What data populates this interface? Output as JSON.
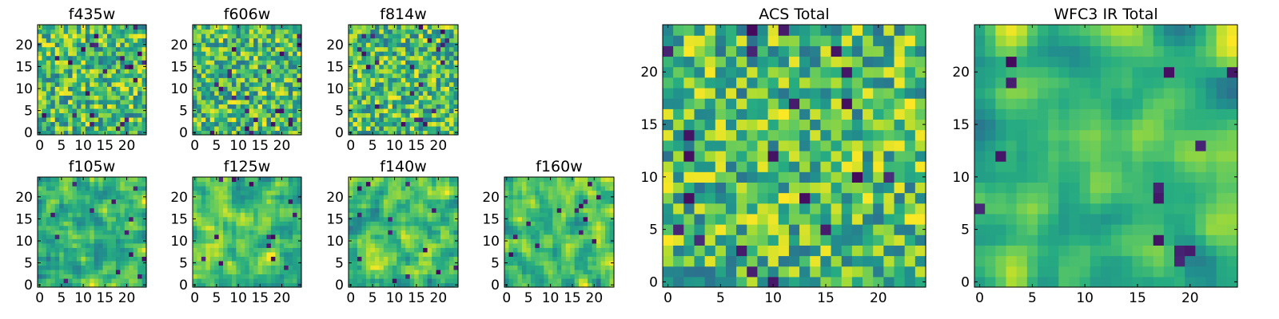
{
  "chart_data": [
    {
      "type": "heatmap",
      "title": "f435w",
      "xlim": [
        -0.5,
        24.5
      ],
      "ylim": [
        -0.5,
        24.5
      ],
      "xticks": [
        0,
        5,
        10,
        15,
        20
      ],
      "yticks": [
        0,
        5,
        10,
        15,
        20
      ],
      "colormap": "viridis",
      "seed": 11,
      "smooth": 0
    },
    {
      "type": "heatmap",
      "title": "f606w",
      "xlim": [
        -0.5,
        24.5
      ],
      "ylim": [
        -0.5,
        24.5
      ],
      "xticks": [
        0,
        5,
        10,
        15,
        20
      ],
      "yticks": [
        0,
        5,
        10,
        15,
        20
      ],
      "colormap": "viridis",
      "seed": 23,
      "smooth": 0
    },
    {
      "type": "heatmap",
      "title": "f814w",
      "xlim": [
        -0.5,
        24.5
      ],
      "ylim": [
        -0.5,
        24.5
      ],
      "xticks": [
        0,
        5,
        10,
        15,
        20
      ],
      "yticks": [
        0,
        5,
        10,
        15,
        20
      ],
      "colormap": "viridis",
      "seed": 37,
      "smooth": 0
    },
    {
      "type": "heatmap",
      "title": "f105w",
      "xlim": [
        -0.5,
        24.5
      ],
      "ylim": [
        -0.5,
        24.5
      ],
      "xticks": [
        0,
        5,
        10,
        15,
        20
      ],
      "yticks": [
        0,
        5,
        10,
        15,
        20
      ],
      "colormap": "viridis",
      "seed": 41,
      "smooth": 1
    },
    {
      "type": "heatmap",
      "title": "f125w",
      "xlim": [
        -0.5,
        24.5
      ],
      "ylim": [
        -0.5,
        24.5
      ],
      "xticks": [
        0,
        5,
        10,
        15,
        20
      ],
      "yticks": [
        0,
        5,
        10,
        15,
        20
      ],
      "colormap": "viridis",
      "seed": 53,
      "smooth": 1
    },
    {
      "type": "heatmap",
      "title": "f140w",
      "xlim": [
        -0.5,
        24.5
      ],
      "ylim": [
        -0.5,
        24.5
      ],
      "xticks": [
        0,
        5,
        10,
        15,
        20
      ],
      "yticks": [
        0,
        5,
        10,
        15,
        20
      ],
      "colormap": "viridis",
      "seed": 67,
      "smooth": 1
    },
    {
      "type": "heatmap",
      "title": "f160w",
      "xlim": [
        -0.5,
        24.5
      ],
      "ylim": [
        -0.5,
        24.5
      ],
      "xticks": [
        0,
        5,
        10,
        15,
        20
      ],
      "yticks": [
        0,
        5,
        10,
        15,
        20
      ],
      "colormap": "viridis",
      "seed": 79,
      "smooth": 1
    },
    {
      "type": "heatmap",
      "title": "ACS Total",
      "xlim": [
        -0.5,
        24.5
      ],
      "ylim": [
        -0.5,
        24.5
      ],
      "xticks": [
        0,
        5,
        10,
        15,
        20
      ],
      "yticks": [
        0,
        5,
        10,
        15,
        20
      ],
      "colormap": "viridis",
      "seed": 97,
      "smooth": 0
    },
    {
      "type": "heatmap",
      "title": "WFC3 IR Total",
      "xlim": [
        -0.5,
        24.5
      ],
      "ylim": [
        -0.5,
        24.5
      ],
      "xticks": [
        0,
        5,
        10,
        15,
        20
      ],
      "yticks": [
        0,
        5,
        10,
        15,
        20
      ],
      "colormap": "viridis",
      "seed": 113,
      "smooth": 2
    }
  ]
}
